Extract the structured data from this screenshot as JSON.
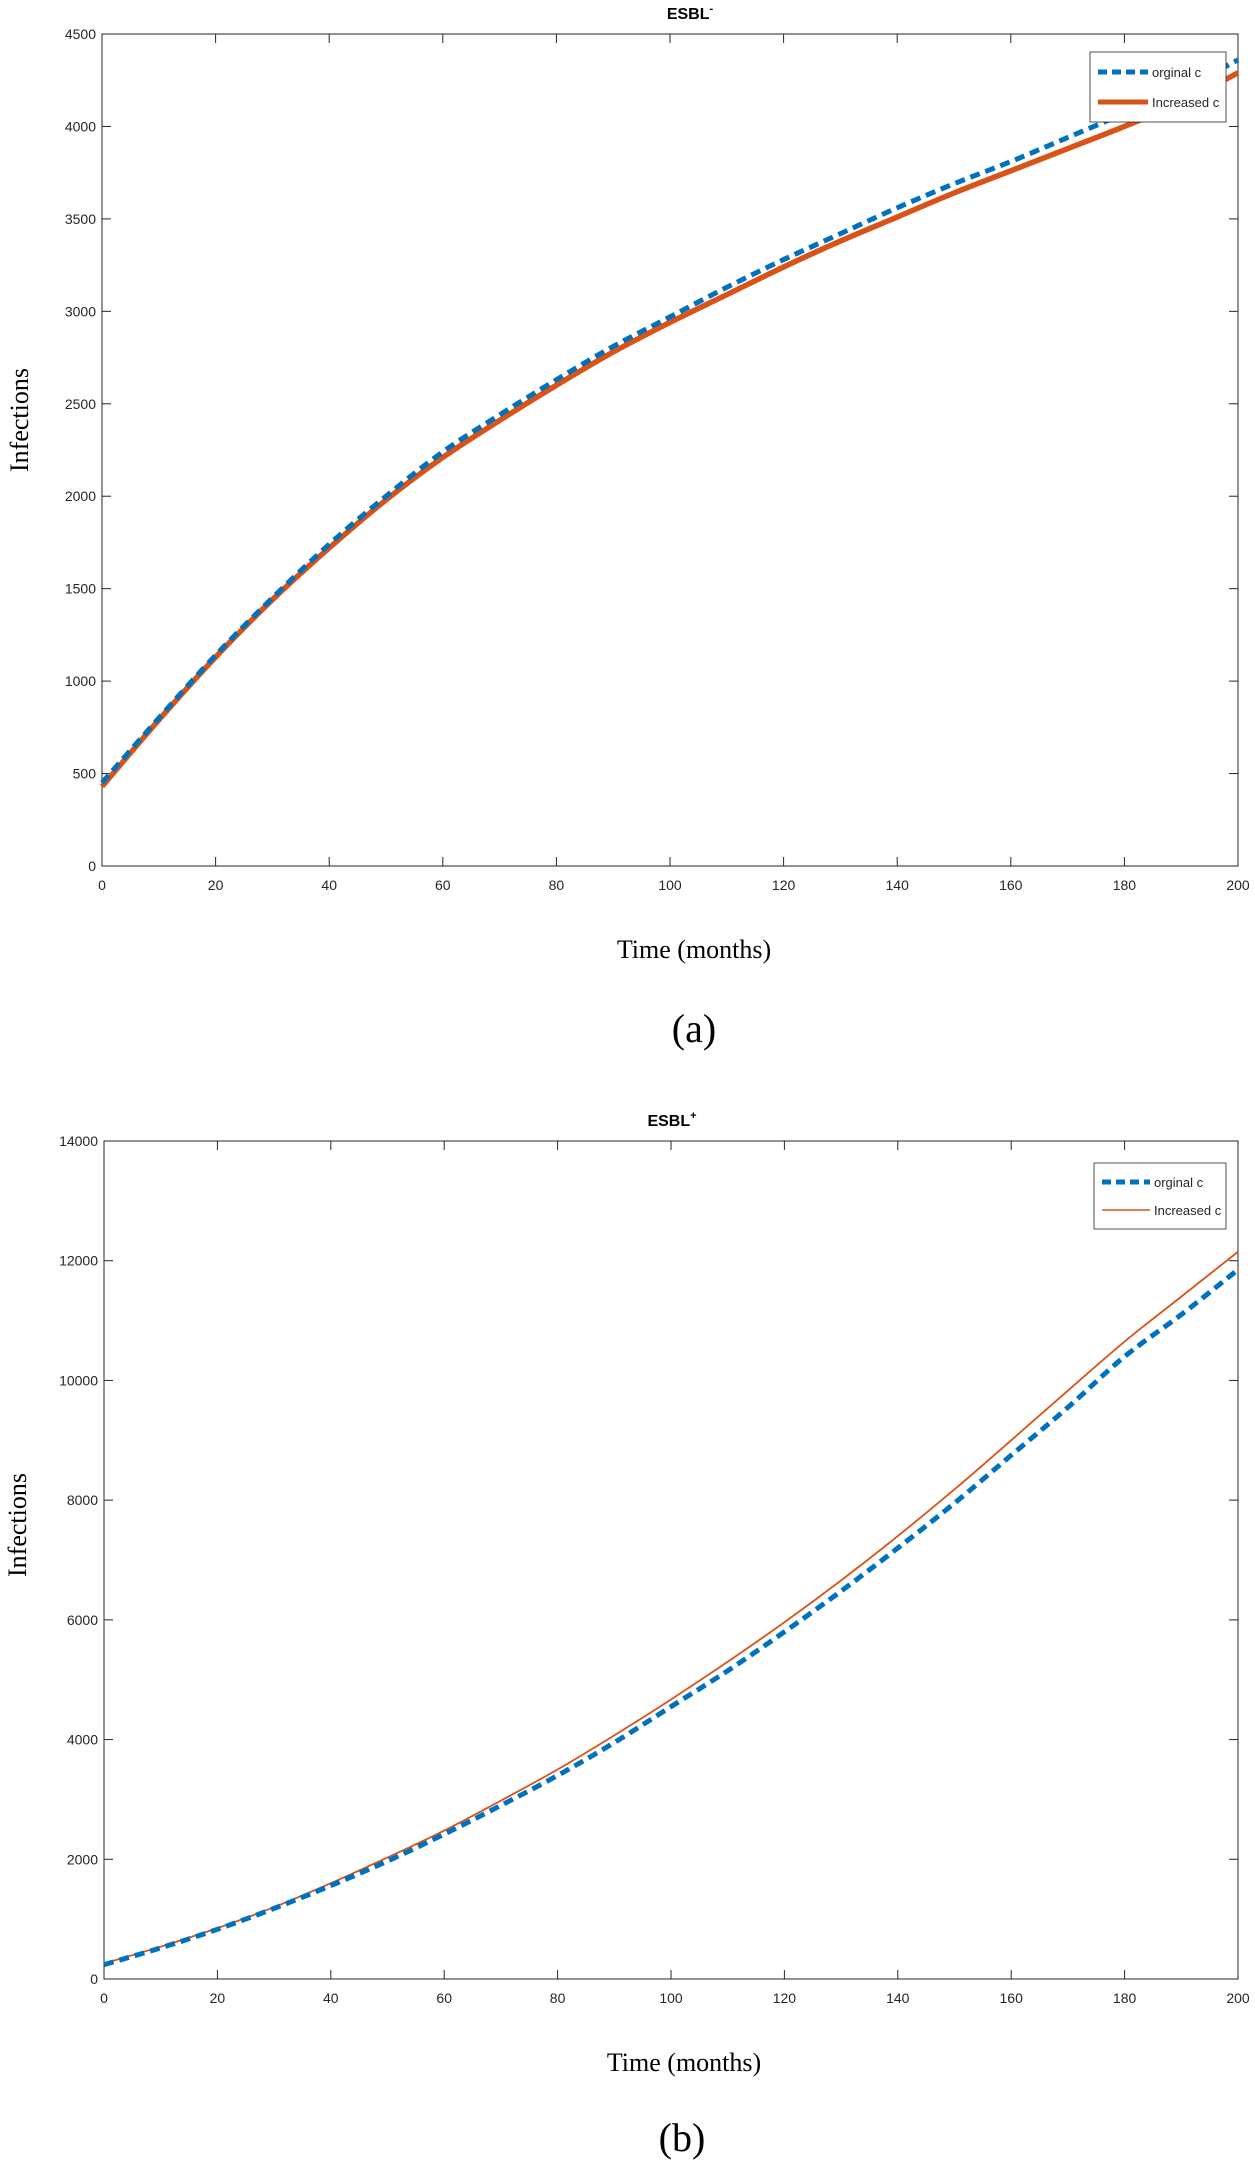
{
  "figure": {
    "panel_labels": [
      "(a)",
      "(b)"
    ]
  },
  "colors": {
    "original": "#0072BD",
    "increased": "#D95319",
    "axis": "#262626",
    "grid": "#e6e6e6"
  },
  "chart_data": [
    {
      "type": "line",
      "title": "ESBL",
      "title_superscript": "-",
      "xlabel": "Time (months)",
      "ylabel": "Infections",
      "xlim": [
        0,
        200
      ],
      "ylim": [
        0,
        4500
      ],
      "xticks": [
        0,
        20,
        40,
        60,
        80,
        100,
        120,
        140,
        160,
        180,
        200
      ],
      "yticks": [
        0,
        500,
        1000,
        1500,
        2000,
        2500,
        3000,
        3500,
        4000,
        4500
      ],
      "grid": false,
      "legend_position": "top-right",
      "series": [
        {
          "name": "orginal c",
          "style": "dashed",
          "x": [
            0,
            10,
            20,
            30,
            40,
            50,
            60,
            70,
            80,
            90,
            100,
            110,
            120,
            130,
            140,
            150,
            160,
            170,
            180,
            190,
            200
          ],
          "values": [
            450,
            800,
            1140,
            1450,
            1740,
            2000,
            2240,
            2440,
            2630,
            2810,
            2970,
            3130,
            3280,
            3420,
            3560,
            3690,
            3810,
            3940,
            4070,
            4200,
            4360
          ]
        },
        {
          "name": "Increased c",
          "style": "solid",
          "x": [
            0,
            10,
            20,
            30,
            40,
            50,
            60,
            70,
            80,
            90,
            100,
            110,
            120,
            130,
            140,
            150,
            160,
            170,
            180,
            190,
            200
          ],
          "values": [
            430,
            790,
            1130,
            1440,
            1720,
            1980,
            2210,
            2410,
            2600,
            2780,
            2940,
            3090,
            3240,
            3380,
            3510,
            3640,
            3760,
            3880,
            4000,
            4130,
            4290
          ]
        }
      ]
    },
    {
      "type": "line",
      "title": "ESBL",
      "title_superscript": "+",
      "xlabel": "Time (months)",
      "ylabel": "Infections",
      "xlim": [
        0,
        200
      ],
      "ylim": [
        0,
        14000
      ],
      "xticks": [
        0,
        20,
        40,
        60,
        80,
        100,
        120,
        140,
        160,
        180,
        200
      ],
      "yticks": [
        0,
        2000,
        4000,
        6000,
        8000,
        10000,
        12000,
        14000
      ],
      "grid": false,
      "legend_position": "top-right",
      "series": [
        {
          "name": "orginal c",
          "style": "dashed",
          "x": [
            0,
            10,
            20,
            30,
            40,
            50,
            60,
            70,
            80,
            90,
            100,
            110,
            120,
            130,
            140,
            150,
            160,
            170,
            180,
            190,
            200
          ],
          "values": [
            240,
            520,
            830,
            1180,
            1560,
            1970,
            2420,
            2900,
            3400,
            3950,
            4550,
            5150,
            5800,
            6480,
            7200,
            7950,
            8750,
            9550,
            10400,
            11100,
            11850
          ]
        },
        {
          "name": "Increased c",
          "style": "solid",
          "x": [
            0,
            10,
            20,
            30,
            40,
            50,
            60,
            70,
            80,
            90,
            100,
            110,
            120,
            130,
            140,
            150,
            160,
            170,
            180,
            190,
            200
          ],
          "values": [
            260,
            540,
            850,
            1200,
            1600,
            2030,
            2480,
            2980,
            3500,
            4070,
            4670,
            5300,
            5960,
            6660,
            7400,
            8180,
            9000,
            9830,
            10650,
            11400,
            12150
          ]
        }
      ]
    }
  ]
}
